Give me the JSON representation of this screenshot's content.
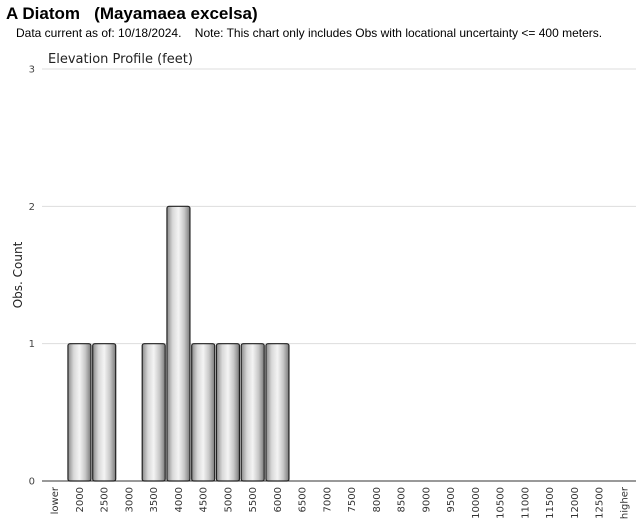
{
  "header": {
    "title": "A Diatom   (Mayamaea excelsa)",
    "subtitle": "Data current as of: 10/18/2024.    Note: This chart only includes Obs with locational uncertainty <= 400 meters."
  },
  "chart_data": {
    "type": "bar",
    "title": "Elevation Profile (feet)",
    "xlabel": "",
    "ylabel": "Obs. Count",
    "ylim": [
      0,
      3
    ],
    "yticks": [
      "0",
      "1",
      "2",
      "3"
    ],
    "grid": true,
    "categories": [
      "lower",
      "2000",
      "2500",
      "3000",
      "3500",
      "4000",
      "4500",
      "5000",
      "5500",
      "6000",
      "6500",
      "7000",
      "7500",
      "8000",
      "8500",
      "9000",
      "9500",
      "10000",
      "10500",
      "11000",
      "11500",
      "12000",
      "12500",
      "higher"
    ],
    "values": [
      0,
      1,
      1,
      0,
      1,
      2,
      1,
      1,
      1,
      1,
      0,
      0,
      0,
      0,
      0,
      0,
      0,
      0,
      0,
      0,
      0,
      0,
      0,
      0
    ]
  }
}
